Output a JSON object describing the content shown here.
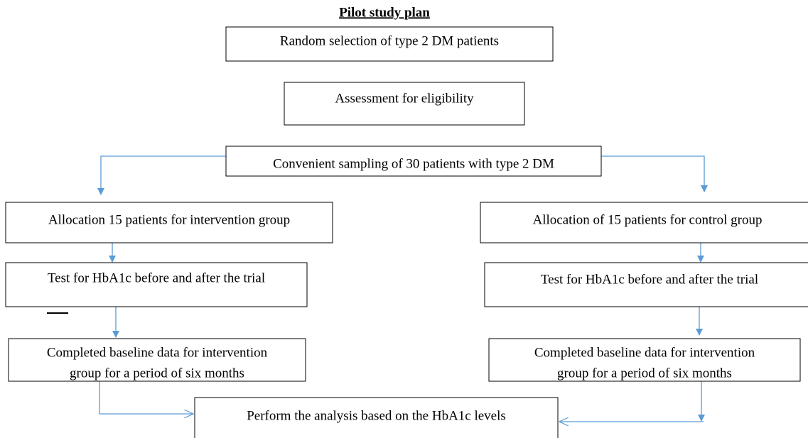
{
  "title": "Pilot study plan",
  "nodes": [
    {
      "label": [
        "Random selection of type 2 DM patients"
      ]
    },
    {
      "label": [
        "Assessment for eligibility"
      ]
    },
    {
      "label": [
        "Convenient sampling of 30 patients with type 2 DM"
      ]
    },
    {
      "label": [
        "Allocation 15 patients for intervention group"
      ]
    },
    {
      "label": [
        "Allocation of 15 patients for control group"
      ]
    },
    {
      "label": [
        "Test for HbA1c before and after the trial"
      ]
    },
    {
      "label": [
        "Test for HbA1c before and after the trial"
      ]
    },
    {
      "label": [
        "Completed baseline data for intervention",
        "group for a period of six months"
      ]
    },
    {
      "label": [
        "Completed baseline data for intervention",
        "group for a period of six months"
      ]
    },
    {
      "label": [
        "Perform the analysis based on the HbA1c levels"
      ]
    }
  ]
}
